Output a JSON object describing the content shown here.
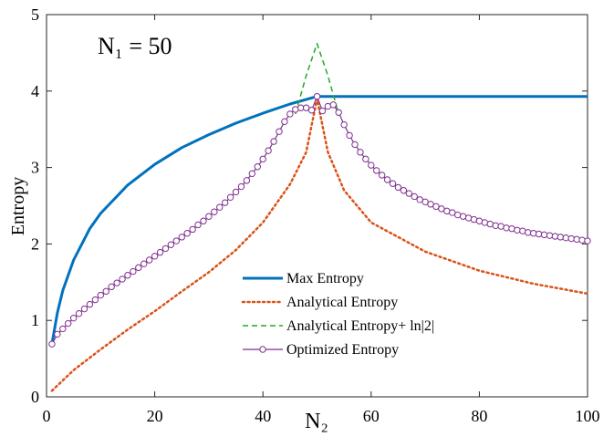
{
  "chart_data": {
    "type": "line",
    "annotation": "N₁ = 50",
    "xlabel": "N₂",
    "ylabel": "Entropy",
    "xlim": [
      0,
      100
    ],
    "ylim": [
      0,
      5
    ],
    "xticks": [
      0,
      20,
      40,
      60,
      80,
      100
    ],
    "yticks": [
      0,
      1,
      2,
      3,
      4,
      5
    ],
    "grid": false,
    "legend_position": "lower-right",
    "series": [
      {
        "name": "Max Entropy",
        "color": "#0072BD",
        "style": "solid",
        "x": [
          1,
          2,
          3,
          5,
          8,
          10,
          15,
          20,
          25,
          30,
          35,
          40,
          45,
          50,
          100
        ],
        "y": [
          0.69,
          1.1,
          1.39,
          1.79,
          2.2,
          2.4,
          2.77,
          3.04,
          3.26,
          3.43,
          3.58,
          3.71,
          3.83,
          3.93,
          3.93
        ]
      },
      {
        "name": "Analytical Entropy",
        "color": "#D95319",
        "style": "dotted",
        "x": [
          1,
          5,
          10,
          15,
          20,
          25,
          30,
          35,
          40,
          45,
          48,
          50,
          52,
          55,
          60,
          70,
          80,
          90,
          100
        ],
        "y": [
          0.08,
          0.35,
          0.62,
          0.88,
          1.12,
          1.38,
          1.63,
          1.92,
          2.28,
          2.78,
          3.2,
          3.9,
          3.2,
          2.7,
          2.28,
          1.9,
          1.65,
          1.48,
          1.35
        ]
      },
      {
        "name": "Analytical Entropy+ ln|2|",
        "color": "#22AA22",
        "style": "dashed",
        "x": [
          46,
          48,
          50,
          52,
          54
        ],
        "y": [
          3.7,
          4.2,
          4.62,
          4.2,
          3.7
        ]
      },
      {
        "name": "Optimized Entropy",
        "color": "#7E2F8E",
        "style": "solid-circle-markers",
        "x": [
          1,
          2,
          3,
          4,
          5,
          6,
          7,
          8,
          9,
          10,
          11,
          12,
          13,
          14,
          15,
          16,
          17,
          18,
          19,
          20,
          21,
          22,
          23,
          24,
          25,
          26,
          27,
          28,
          29,
          30,
          31,
          32,
          33,
          34,
          35,
          36,
          37,
          38,
          39,
          40,
          41,
          42,
          43,
          44,
          45,
          46,
          47,
          48,
          49,
          50,
          51,
          52,
          53,
          54,
          55,
          56,
          57,
          58,
          59,
          60,
          61,
          62,
          63,
          64,
          65,
          66,
          67,
          68,
          69,
          70,
          71,
          72,
          73,
          74,
          75,
          76,
          77,
          78,
          79,
          80,
          81,
          82,
          83,
          84,
          85,
          86,
          87,
          88,
          89,
          90,
          91,
          92,
          93,
          94,
          95,
          96,
          97,
          98,
          99,
          100
        ],
        "y": [
          0.69,
          0.82,
          0.89,
          0.96,
          1.03,
          1.09,
          1.15,
          1.21,
          1.27,
          1.33,
          1.38,
          1.44,
          1.49,
          1.54,
          1.59,
          1.64,
          1.69,
          1.74,
          1.79,
          1.84,
          1.89,
          1.94,
          1.99,
          2.04,
          2.09,
          2.14,
          2.19,
          2.25,
          2.3,
          2.36,
          2.42,
          2.48,
          2.54,
          2.61,
          2.68,
          2.75,
          2.83,
          2.92,
          3.01,
          3.11,
          3.22,
          3.34,
          3.47,
          3.6,
          3.7,
          3.76,
          3.78,
          3.78,
          3.75,
          3.93,
          3.74,
          3.8,
          3.82,
          3.72,
          3.56,
          3.42,
          3.3,
          3.2,
          3.11,
          3.03,
          2.96,
          2.9,
          2.84,
          2.79,
          2.74,
          2.7,
          2.66,
          2.62,
          2.58,
          2.55,
          2.52,
          2.49,
          2.46,
          2.43,
          2.41,
          2.38,
          2.36,
          2.34,
          2.32,
          2.3,
          2.28,
          2.26,
          2.24,
          2.23,
          2.21,
          2.2,
          2.18,
          2.17,
          2.15,
          2.14,
          2.13,
          2.12,
          2.11,
          2.1,
          2.09,
          2.08,
          2.07,
          2.06,
          2.05,
          2.04
        ]
      }
    ]
  }
}
